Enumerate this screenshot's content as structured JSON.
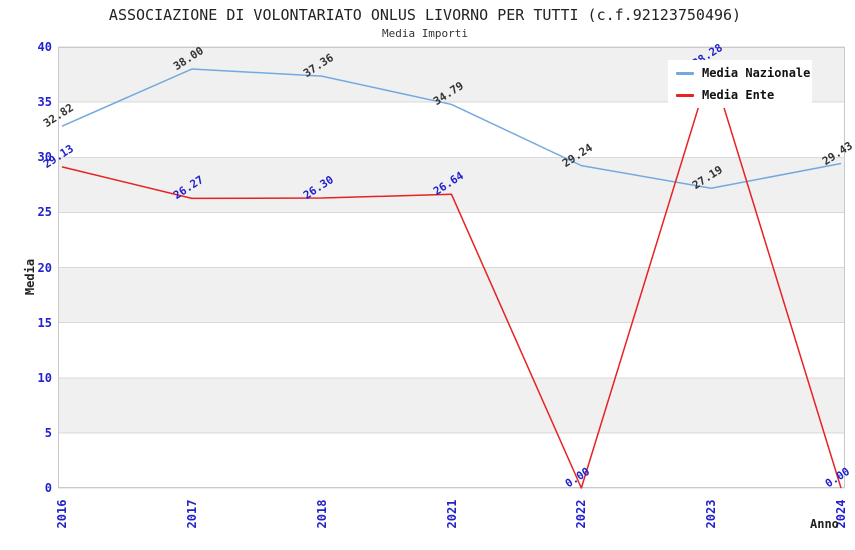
{
  "header": {
    "title": "ASSOCIAZIONE DI VOLONTARIATO ONLUS LIVORNO PER TUTTI (c.f.92123750496)",
    "subtitle": "Media Importi"
  },
  "axes": {
    "x_title": "Anno",
    "y_title": "Media",
    "y_ticks": [
      "0",
      "5",
      "10",
      "15",
      "20",
      "25",
      "30",
      "35",
      "40"
    ],
    "x_ticks": [
      "2016",
      "2017",
      "2018",
      "2021",
      "2022",
      "2023",
      "2024"
    ],
    "tick_label_color": "#2222cc"
  },
  "legend": {
    "position": "top-right",
    "items": [
      {
        "label": "Media Nazionale"
      },
      {
        "label": "Media Ente"
      }
    ]
  },
  "chart_data": {
    "type": "line",
    "title": "ASSOCIAZIONE DI VOLONTARIATO ONLUS LIVORNO PER TUTTI (c.f.92123750496)",
    "subtitle": "Media Importi",
    "categories": [
      "2016",
      "2017",
      "2018",
      "2021",
      "2022",
      "2023",
      "2024"
    ],
    "series": [
      {
        "name": "Media Nazionale",
        "color": "#74a9df",
        "label_color": "#333333",
        "values": [
          32.82,
          38.0,
          37.36,
          34.79,
          29.24,
          27.19,
          29.43
        ],
        "labels": [
          "32.82",
          "38.00",
          "37.36",
          "34.79",
          "29.24",
          "27.19",
          "29.43"
        ]
      },
      {
        "name": "Media Ente",
        "color": "#e62222",
        "label_color": "#2222cc",
        "values": [
          29.13,
          26.27,
          26.3,
          26.64,
          0.0,
          38.28,
          0.0
        ],
        "labels": [
          "29.13",
          "26.27",
          "26.30",
          "26.64",
          "0.00",
          "38.28",
          "0.00"
        ]
      }
    ],
    "xlabel": "Anno",
    "ylabel": "Media",
    "ylim": [
      0,
      40
    ],
    "ytick_step": 5,
    "legend_position": "top-right",
    "grid": "horizontal-bands-alternating",
    "band_colors": [
      "#f0f0f0",
      "#ffffff"
    ],
    "gridline_color": "#d9d9d9",
    "border_color": "#c9c9c9"
  }
}
